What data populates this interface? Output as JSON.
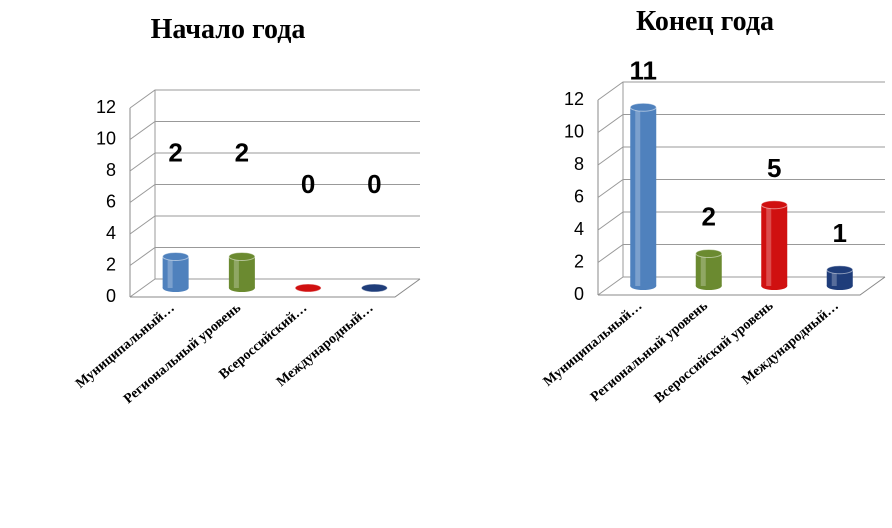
{
  "chart_data": [
    {
      "type": "bar",
      "title": "Начало года",
      "categories": [
        "Муниципальный…",
        "Региональный уровень",
        "Всероссийский…",
        "Международный…"
      ],
      "values": [
        2,
        2,
        0,
        0
      ],
      "colors": [
        "#4f81bd",
        "#6b8a30",
        "#d01010",
        "#1f3d7a"
      ],
      "ylim": [
        0,
        12
      ],
      "yticks": [
        0,
        2,
        4,
        6,
        8,
        10,
        12
      ],
      "grid": true
    },
    {
      "type": "bar",
      "title": "Конец года",
      "categories": [
        "Муниципальный…",
        "Региональный уровень",
        "Всероссийский уровень",
        "Международный…"
      ],
      "values": [
        11,
        2,
        5,
        1
      ],
      "colors": [
        "#4f81bd",
        "#6b8a30",
        "#d01010",
        "#1f3d7a"
      ],
      "ylim": [
        0,
        12
      ],
      "yticks": [
        0,
        2,
        4,
        6,
        8,
        10,
        12
      ],
      "grid": true
    }
  ]
}
